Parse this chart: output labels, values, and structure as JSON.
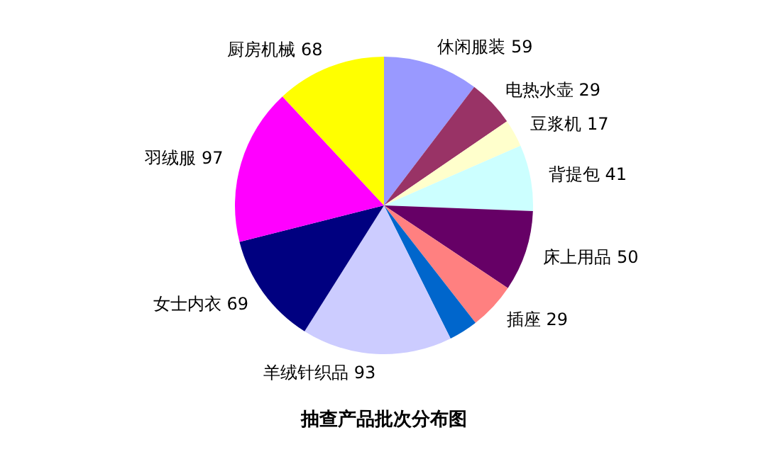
{
  "chart_data": {
    "type": "pie",
    "title": "抽查产品批次分布图",
    "categories": [
      "休闲服装",
      "电热水壶",
      "豆浆机",
      "背提包",
      "床上用品",
      "插座",
      null,
      "羊绒针织品",
      "女士内衣",
      "羽绒服",
      "厨房机械"
    ],
    "values": [
      59,
      29,
      17,
      41,
      50,
      29,
      18,
      93,
      69,
      97,
      68
    ],
    "value_labels": [
      "59",
      "29",
      "17",
      "41",
      "50",
      "29",
      null,
      "93",
      "69",
      "97",
      "68"
    ],
    "colors": [
      "#9999ff",
      "#993366",
      "#ffffcc",
      "#ccffff",
      "#660066",
      "#ff8080",
      "#0066cc",
      "#ccccff",
      "#000080",
      "#ff00ff",
      "#ffff00"
    ],
    "legend": false
  }
}
